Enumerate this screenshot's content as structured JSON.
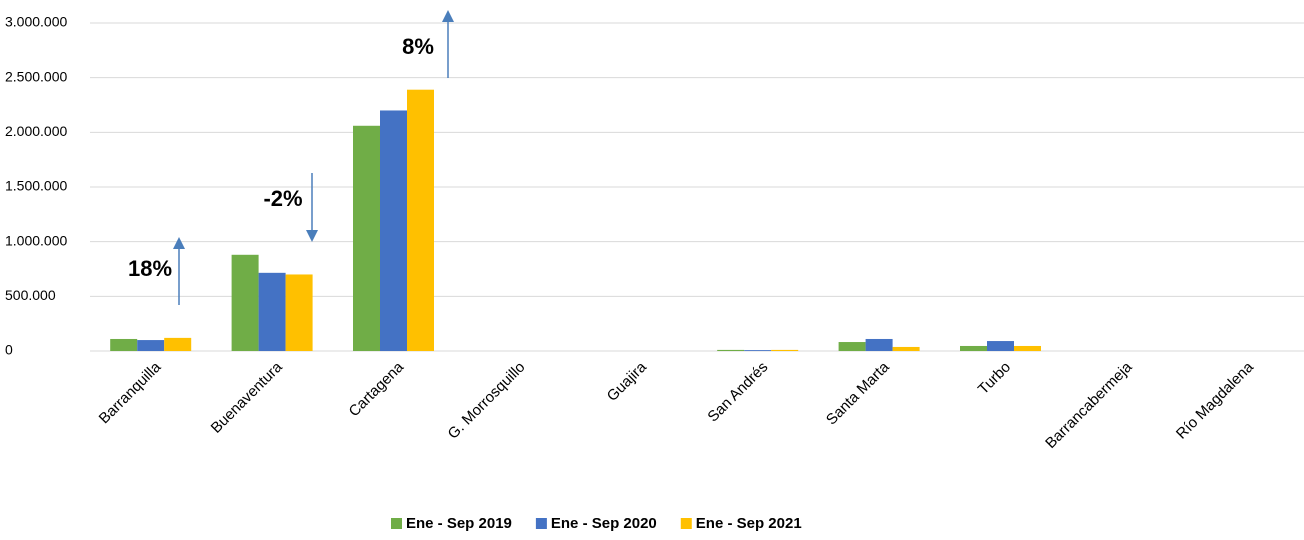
{
  "chart_data": {
    "type": "bar",
    "categories": [
      "Barranquilla",
      "Buenaventura",
      "Cartagena",
      "G. Morrosquillo",
      "Guajira",
      "San Andrés",
      "Santa Marta",
      "Turbo",
      "Barrancabermeja",
      "Río Magdalena"
    ],
    "series": [
      {
        "name": "Ene - Sep 2019",
        "color": "#70ad47",
        "values": [
          110000,
          880000,
          2060000,
          0,
          0,
          10000,
          82000,
          46000,
          0,
          0
        ]
      },
      {
        "name": "Ene - Sep 2020",
        "color": "#4472c4",
        "values": [
          100000,
          715000,
          2200000,
          0,
          0,
          8000,
          110000,
          91000,
          0,
          0
        ]
      },
      {
        "name": "Ene - Sep 2021",
        "color": "#ffc000",
        "values": [
          120000,
          700000,
          2390000,
          0,
          0,
          10000,
          37000,
          46000,
          0,
          0
        ]
      }
    ],
    "ylim": [
      0,
      3000000
    ],
    "yticks": [
      0,
      {
        "value": 500000,
        "label": "500.000"
      },
      {
        "value": 1000000,
        "label": "1.000.000"
      },
      {
        "value": 1500000,
        "label": "1.500.000"
      },
      {
        "value": 2000000,
        "label": "2.000.000"
      },
      {
        "value": 2500000,
        "label": "2.500.000"
      },
      {
        "value": 3000000,
        "label": "3.000.000"
      }
    ],
    "grid": true,
    "legend": "bottom",
    "annotations": [
      "18%",
      "-2%",
      "8%"
    ]
  }
}
